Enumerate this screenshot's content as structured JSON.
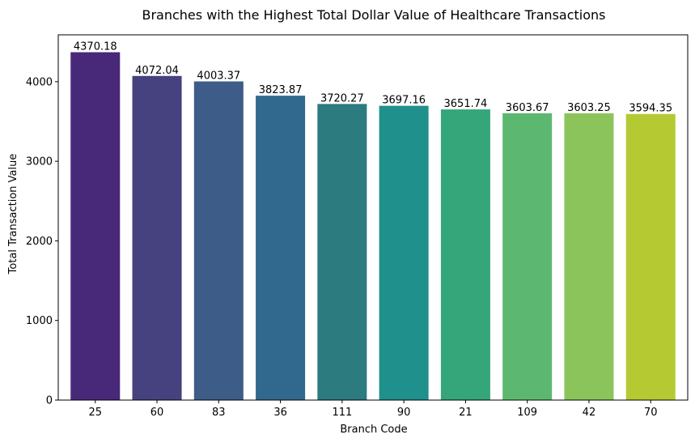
{
  "chart_data": {
    "type": "bar",
    "title": "Branches with the Highest Total Dollar Value of Healthcare Transactions",
    "xlabel": "Branch Code",
    "ylabel": "Total Transaction Value",
    "categories": [
      "25",
      "60",
      "83",
      "36",
      "111",
      "90",
      "21",
      "109",
      "42",
      "70"
    ],
    "values": [
      4370.18,
      4072.04,
      4003.37,
      3823.87,
      3720.27,
      3697.16,
      3651.74,
      3603.67,
      3603.25,
      3594.35
    ],
    "value_labels": [
      "4370.18",
      "4072.04",
      "4003.37",
      "3823.87",
      "3720.27",
      "3697.16",
      "3651.74",
      "3603.67",
      "3603.25",
      "3594.35"
    ],
    "ylim": [
      0,
      4588.69
    ],
    "yticks": [
      0,
      1000,
      2000,
      3000,
      4000
    ],
    "ytick_labels": [
      "0",
      "1000",
      "2000",
      "3000",
      "4000"
    ],
    "colors": [
      "#482878",
      "#46427f",
      "#3e5c88",
      "#31688e",
      "#2b7b7f",
      "#20908c",
      "#35a67a",
      "#5cb870",
      "#8cc45c",
      "#b5ca32"
    ],
    "grid": false,
    "legend": "none"
  }
}
